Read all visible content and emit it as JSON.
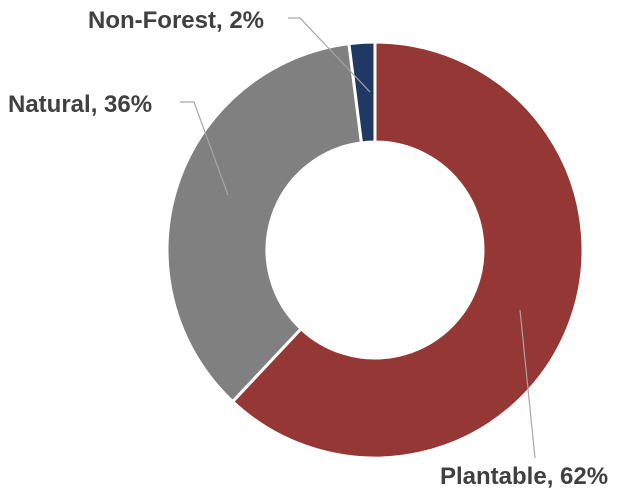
{
  "chart_data": {
    "type": "pie",
    "donut": true,
    "title": "",
    "slices": [
      {
        "label": "Plantable",
        "value": 62,
        "display": "Plantable, 62%",
        "color": "#953735"
      },
      {
        "label": "Natural",
        "value": 36,
        "display": "Natural, 36%",
        "color": "#808080"
      },
      {
        "label": "Non-Forest",
        "value": 2,
        "display": "Non-Forest, 2%",
        "color": "#1f3864"
      }
    ],
    "legend": "none"
  }
}
